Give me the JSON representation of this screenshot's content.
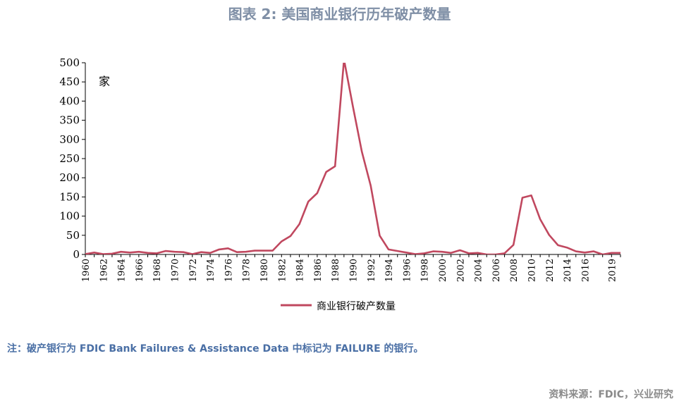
{
  "title": "图表 2:   美国商业银行历年破产数量",
  "note": "注：破产银行为 FDIC Bank Failures & Assistance Data 中标记为 FAILURE 的银行。",
  "source": "资料来源：FDIC，兴业研究",
  "colors": {
    "series": "#c0485f",
    "title": "#7f8fa6",
    "note": "#4a6fa5",
    "source": "#8a8a8a"
  },
  "chart_data": {
    "type": "line",
    "unit_label": "家",
    "ylim": [
      0,
      500
    ],
    "yticks": [
      0,
      50,
      100,
      150,
      200,
      250,
      300,
      350,
      400,
      450,
      500
    ],
    "xlim": [
      1960,
      2020
    ],
    "xticks": [
      1960,
      1962,
      1964,
      1966,
      1968,
      1970,
      1972,
      1974,
      1976,
      1978,
      1980,
      1982,
      1984,
      1986,
      1988,
      1990,
      1992,
      1994,
      1996,
      1998,
      2000,
      2002,
      2004,
      2006,
      2008,
      2010,
      2012,
      2014,
      2016,
      2019
    ],
    "legend_position": "bottom",
    "series": [
      {
        "name": "商业银行破产数量",
        "x": [
          1960,
          1961,
          1962,
          1963,
          1964,
          1965,
          1966,
          1967,
          1968,
          1969,
          1970,
          1971,
          1972,
          1973,
          1974,
          1975,
          1976,
          1977,
          1978,
          1979,
          1980,
          1981,
          1982,
          1983,
          1984,
          1985,
          1986,
          1987,
          1988,
          1989,
          1990,
          1991,
          1992,
          1993,
          1994,
          1995,
          1996,
          1997,
          1998,
          1999,
          2000,
          2001,
          2002,
          2003,
          2004,
          2005,
          2006,
          2007,
          2008,
          2009,
          2010,
          2011,
          2012,
          2013,
          2014,
          2015,
          2016,
          2017,
          2018,
          2019,
          2020
        ],
        "values": [
          1,
          5,
          1,
          2,
          7,
          5,
          7,
          4,
          3,
          9,
          7,
          6,
          1,
          6,
          4,
          13,
          16,
          6,
          7,
          10,
          10,
          10,
          34,
          48,
          79,
          138,
          160,
          215,
          230,
          508,
          386,
          268,
          179,
          49,
          13,
          9,
          5,
          1,
          3,
          8,
          7,
          4,
          11,
          3,
          4,
          0,
          0,
          3,
          25,
          148,
          154,
          92,
          51,
          24,
          18,
          8,
          5,
          8,
          0,
          4,
          4
        ]
      }
    ]
  }
}
